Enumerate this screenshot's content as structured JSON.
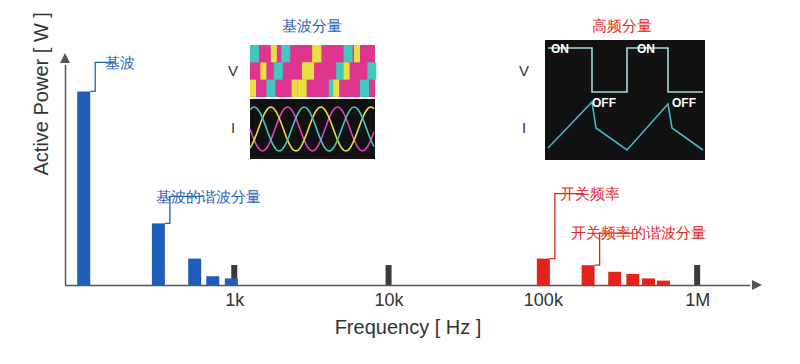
{
  "chart_data": {
    "type": "bar",
    "x_label": "Frequency [ Hz ]",
    "y_label": "Active Power [ W ]",
    "log": "x",
    "xlim": [
      80,
      2200000
    ],
    "ylim": [
      0,
      100
    ],
    "xticks": [
      {
        "value": 1000,
        "label": "1k"
      },
      {
        "value": 10000,
        "label": "10k"
      },
      {
        "value": 100000,
        "label": "100k"
      },
      {
        "value": 1000000,
        "label": "1M"
      }
    ],
    "tick_labels": "x",
    "series": [
      {
        "name": "基波",
        "color": "#1f5eb8",
        "x": [
          105
        ],
        "values": [
          88
        ]
      },
      {
        "name": "基波的谐波分量",
        "color": "#1f5eb8",
        "x": [
          320,
          550,
          720,
          950
        ],
        "values": [
          28,
          12,
          4,
          3
        ]
      },
      {
        "name": "开关频率",
        "color": "#e3241b",
        "x": [
          100000
        ],
        "values": [
          12
        ]
      },
      {
        "name": "开关频率的谐波分量",
        "color": "#e3241b",
        "x": [
          195000,
          290000,
          380000,
          480000,
          600000
        ],
        "values": [
          9,
          6,
          5,
          3,
          2
        ]
      }
    ],
    "insets": [
      {
        "title": "基波分量",
        "color": "#1f5eb8",
        "labels": [
          "V",
          "I"
        ]
      },
      {
        "title": "高频分量",
        "color": "#e3241b",
        "labels": [
          "V",
          "I"
        ],
        "states": [
          "ON",
          "ON",
          "OFF",
          "OFF"
        ]
      }
    ]
  }
}
